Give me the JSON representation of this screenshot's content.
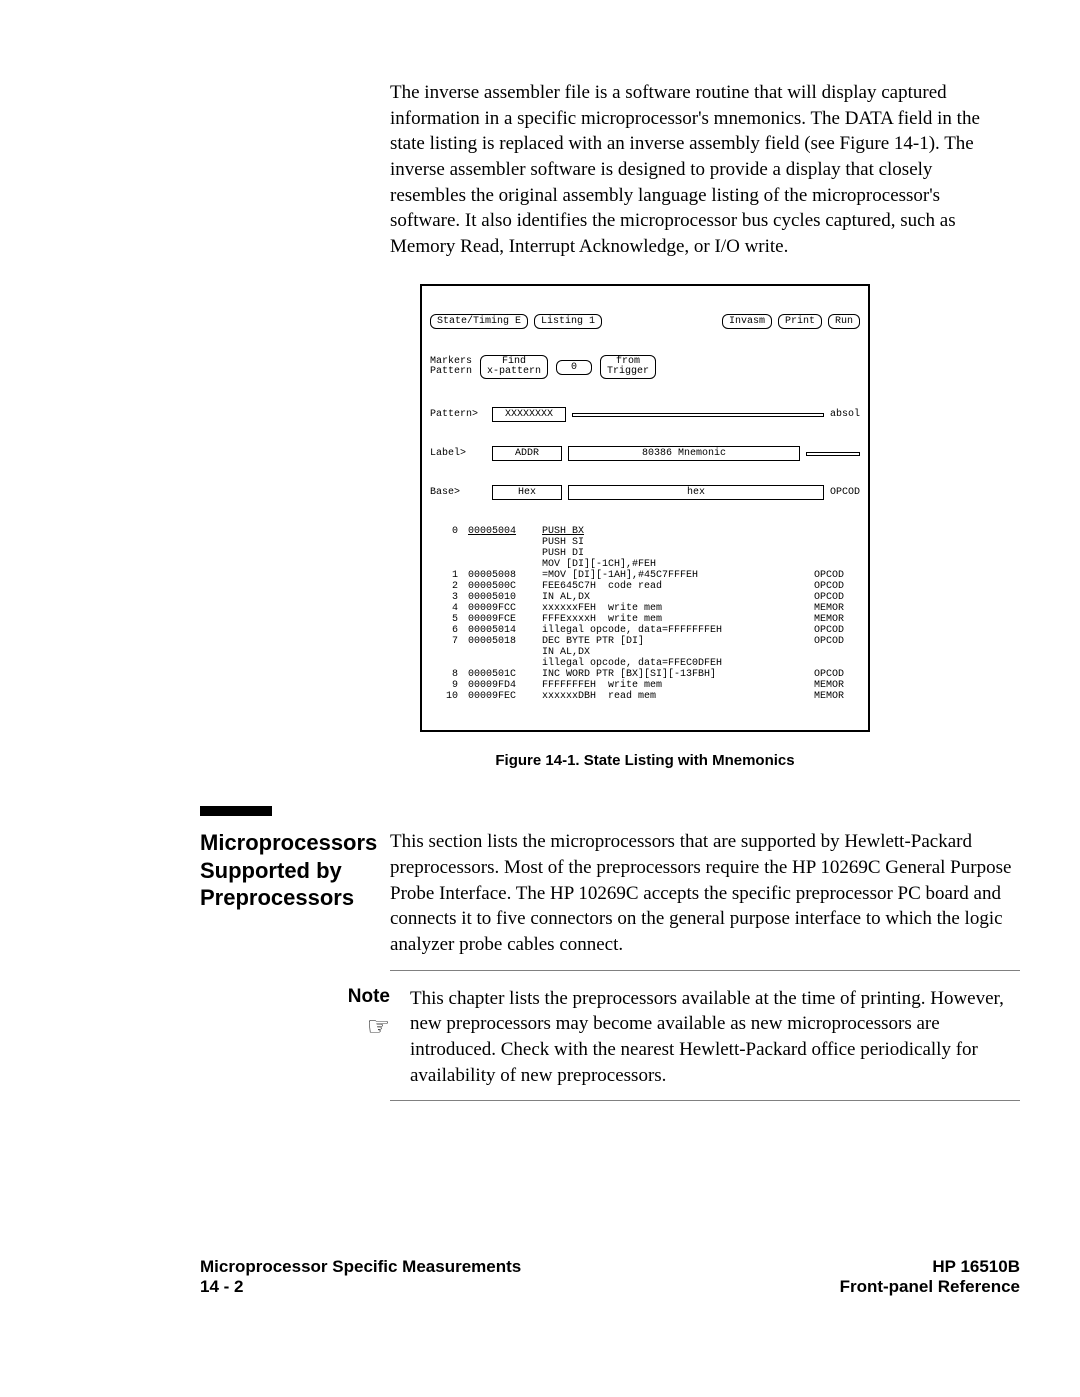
{
  "intro": "The inverse assembler file is a software routine that will display captured information in a specific microprocessor's mnemonics. The DATA field in the state listing is replaced with an inverse assembly field (see Figure 14-1). The inverse assembler software is designed to provide a display that closely resembles the original assembly language listing of the microprocessor's software. It also identifies the microprocessor bus cycles captured, such as Memory Read, Interrupt Acknowledge, or I/O write.",
  "figure": {
    "buttons": {
      "state_timing": "State/Timing E",
      "listing": "Listing 1",
      "invasm": "Invasm",
      "print": "Print",
      "run": "Run"
    },
    "markers": {
      "label1a": "Markers",
      "label1b": "Pattern",
      "findA": "Find",
      "findB": "x-pattern",
      "zero": "0",
      "fromA": "from",
      "fromB": "Trigger"
    },
    "headers": {
      "pattern": "Pattern>",
      "xxxxxxxx": "XXXXXXXX",
      "absol": "absol",
      "label": "Label>",
      "addr": "ADDR",
      "mnemonic": "80386 Mnemonic",
      "base": "Base>",
      "hex": "Hex",
      "hex2": "hex",
      "opcod": "OPCOD"
    },
    "rows": [
      {
        "idx": "0",
        "addr": "00005004",
        "mnem": "PUSH BX",
        "tag": ""
      },
      {
        "idx": "",
        "addr": "",
        "mnem": "PUSH SI",
        "tag": ""
      },
      {
        "idx": "",
        "addr": "",
        "mnem": "PUSH DI",
        "tag": ""
      },
      {
        "idx": "",
        "addr": "",
        "mnem": "MOV [DI][-1CH],#FEH",
        "tag": ""
      },
      {
        "idx": "1",
        "addr": "00005008",
        "mnem": "=MOV [DI][-1AH],#45C7FFFEH",
        "tag": "OPCOD"
      },
      {
        "idx": "2",
        "addr": "0000500C",
        "mnem": "FEE645C7H  code read",
        "tag": "OPCOD"
      },
      {
        "idx": "3",
        "addr": "00005010",
        "mnem": "IN AL,DX",
        "tag": "OPCOD"
      },
      {
        "idx": "4",
        "addr": "00009FCC",
        "mnem": "xxxxxxFEH  write mem",
        "tag": "MEMOR"
      },
      {
        "idx": "5",
        "addr": "00009FCE",
        "mnem": "FFFExxxxH  write mem",
        "tag": "MEMOR"
      },
      {
        "idx": "6",
        "addr": "00005014",
        "mnem": "illegal opcode, data=FFFFFFFEH",
        "tag": "OPCOD"
      },
      {
        "idx": "7",
        "addr": "00005018",
        "mnem": "DEC BYTE PTR [DI]",
        "tag": "OPCOD"
      },
      {
        "idx": "",
        "addr": "",
        "mnem": "IN AL,DX",
        "tag": ""
      },
      {
        "idx": "",
        "addr": "",
        "mnem": "illegal opcode, data=FFEC0DFEH",
        "tag": ""
      },
      {
        "idx": "8",
        "addr": "0000501C",
        "mnem": "INC WORD PTR [BX][SI][-13FBH]",
        "tag": "OPCOD"
      },
      {
        "idx": "9",
        "addr": "00009FD4",
        "mnem": "FFFFFFFEH  write mem",
        "tag": "MEMOR"
      },
      {
        "idx": "10",
        "addr": "00009FEC",
        "mnem": "xxxxxxDBH  read mem",
        "tag": "MEMOR"
      }
    ],
    "caption": "Figure 14-1. State Listing with Mnemonics"
  },
  "section": {
    "title": "Microprocessors Supported by Preprocessors",
    "body": "This section lists the microprocessors that are supported by Hewlett-Packard preprocessors. Most of the preprocessors require the HP 10269C General Purpose Probe Interface. The HP 10269C accepts the specific preprocessor PC board and connects it to five connectors on the general purpose interface to which the logic analyzer probe cables connect."
  },
  "note": {
    "label": "Note",
    "body": "This chapter lists the preprocessors available at the time of printing. However, new preprocessors may become available as new microprocessors are introduced. Check with the nearest Hewlett-Packard office periodically for availability of new preprocessors."
  },
  "footer": {
    "left1": "Microprocessor Specific Measurements",
    "left2": "14 - 2",
    "right1": "HP 16510B",
    "right2": "Front-panel Reference"
  }
}
